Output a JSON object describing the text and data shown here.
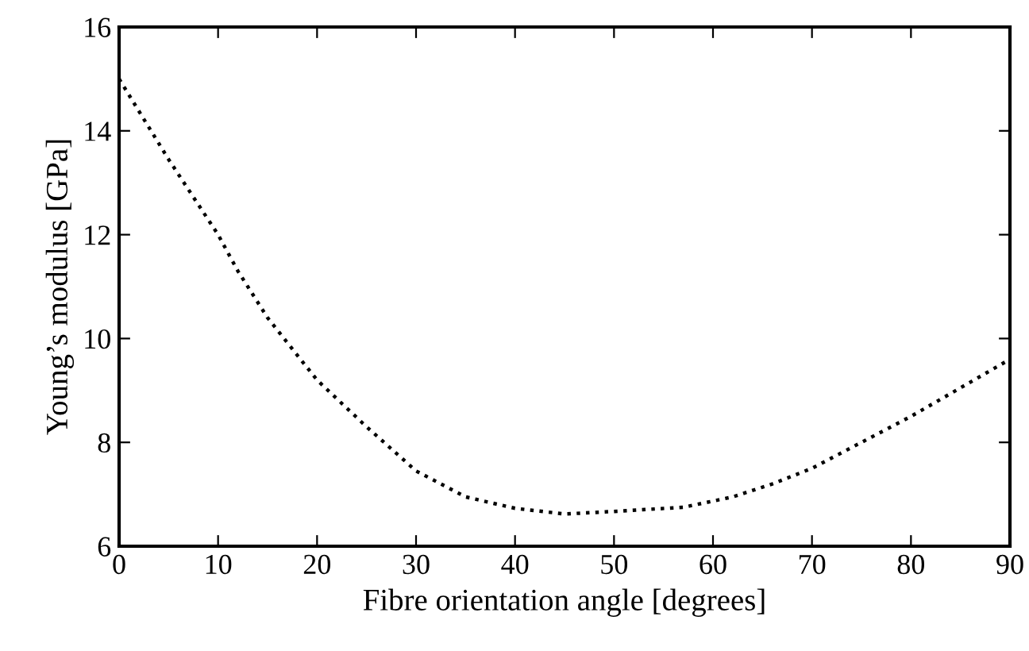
{
  "chart_data": {
    "type": "line",
    "xlabel": "Fibre orientation angle [degrees]",
    "ylabel": "Young’s modulus [GPa]",
    "x": [
      0,
      5,
      10,
      12,
      15,
      20,
      25,
      30,
      35,
      40,
      45,
      50,
      57,
      62,
      66,
      70,
      75,
      80,
      85,
      90
    ],
    "series": [
      {
        "color": "#000000",
        "values": [
          15.0,
          13.45,
          12.0,
          11.3,
          10.4,
          9.2,
          8.3,
          7.45,
          6.95,
          6.73,
          6.62,
          6.67,
          6.75,
          6.95,
          7.2,
          7.5,
          8.0,
          8.5,
          9.05,
          9.6
        ]
      }
    ],
    "xlim": [
      0,
      90
    ],
    "ylim": [
      6,
      16
    ],
    "xticks": [
      0,
      10,
      20,
      30,
      40,
      50,
      60,
      70,
      80,
      90
    ],
    "yticks": [
      6,
      8,
      10,
      12,
      14,
      16
    ],
    "grid": false,
    "legend": false,
    "marker": "none",
    "line_style": "dotted"
  }
}
